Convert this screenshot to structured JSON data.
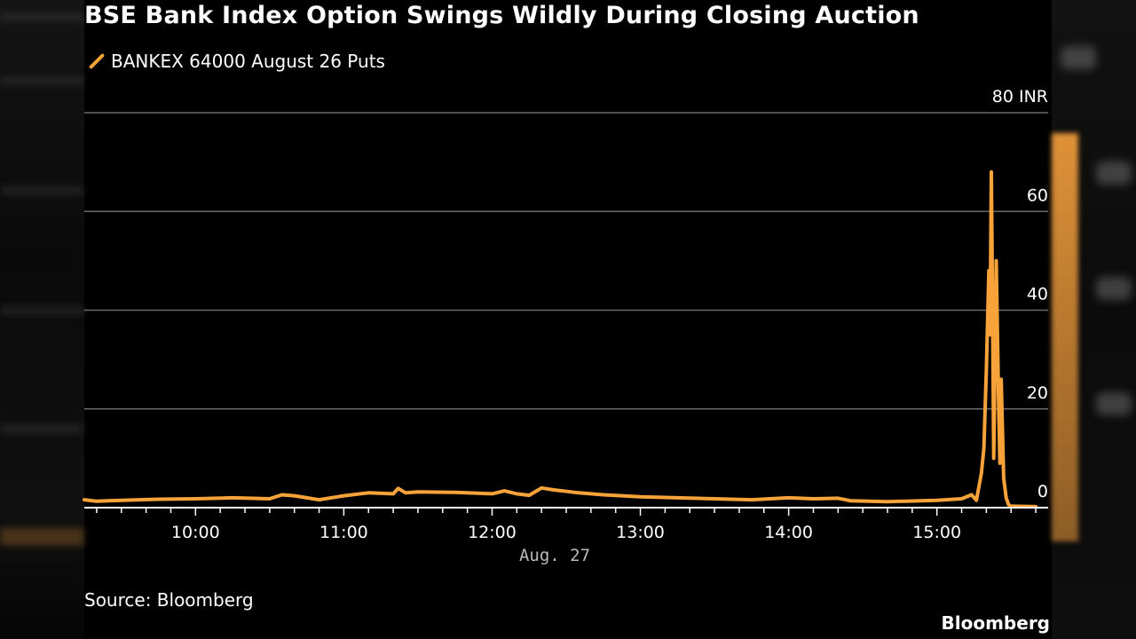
{
  "title": "BSE Bank Index Option Swings Wildly During Closing Auction",
  "legend": {
    "label": "BANKEX 64000 August 26 Puts"
  },
  "source": "Source: Bloomberg",
  "brand": "Bloomberg",
  "colors": {
    "series": "#f7a33a",
    "grid": "#6a6a6a",
    "background": "#000000",
    "text": "#ffffff",
    "date_text": "#bbbbbb"
  },
  "chart_data": {
    "type": "line",
    "title": "BSE Bank Index Option Swings Wildly During Closing Auction",
    "ylabel": "",
    "xlabel": "",
    "y_unit": "INR",
    "ylim": [
      0,
      80
    ],
    "y_ticks": [
      0,
      20,
      40,
      60,
      80
    ],
    "y_tick_labels": [
      "0",
      "20",
      "40",
      "60",
      "80 INR"
    ],
    "y_axis_position": "right",
    "xlim": [
      "09:15",
      "15:45"
    ],
    "x_ticks": [
      "10:00",
      "11:00",
      "12:00",
      "13:00",
      "14:00",
      "15:00"
    ],
    "x_date_label": "Aug. 27",
    "grid": true,
    "legend_position": "top-left",
    "series": [
      {
        "name": "BANKEX 64000 August 26 Puts",
        "color": "#f7a33a",
        "points": [
          [
            "09:15",
            1.6
          ],
          [
            "09:20",
            1.3
          ],
          [
            "09:30",
            1.5
          ],
          [
            "09:45",
            1.7
          ],
          [
            "10:00",
            1.8
          ],
          [
            "10:15",
            2.0
          ],
          [
            "10:30",
            1.8
          ],
          [
            "10:35",
            2.6
          ],
          [
            "10:40",
            2.4
          ],
          [
            "10:50",
            1.6
          ],
          [
            "11:00",
            2.4
          ],
          [
            "11:10",
            3.0
          ],
          [
            "11:20",
            2.8
          ],
          [
            "11:22",
            3.9
          ],
          [
            "11:25",
            3.0
          ],
          [
            "11:30",
            3.2
          ],
          [
            "11:45",
            3.1
          ],
          [
            "12:00",
            2.8
          ],
          [
            "12:05",
            3.4
          ],
          [
            "12:10",
            2.8
          ],
          [
            "12:15",
            2.5
          ],
          [
            "12:20",
            4.0
          ],
          [
            "12:25",
            3.6
          ],
          [
            "12:35",
            3.0
          ],
          [
            "12:45",
            2.6
          ],
          [
            "13:00",
            2.2
          ],
          [
            "13:15",
            2.0
          ],
          [
            "13:30",
            1.8
          ],
          [
            "13:45",
            1.6
          ],
          [
            "14:00",
            2.0
          ],
          [
            "14:10",
            1.8
          ],
          [
            "14:20",
            1.9
          ],
          [
            "14:25",
            1.4
          ],
          [
            "14:40",
            1.2
          ],
          [
            "15:00",
            1.5
          ],
          [
            "15:10",
            1.8
          ],
          [
            "15:14",
            2.6
          ],
          [
            "15:16",
            1.5
          ],
          [
            "15:18",
            7.0
          ],
          [
            "15:19",
            12.0
          ],
          [
            "15:20",
            28.0
          ],
          [
            "15:21",
            48.0
          ],
          [
            "15:21.5",
            35.0
          ],
          [
            "15:22",
            68.0
          ],
          [
            "15:22.5",
            42.0
          ],
          [
            "15:23",
            10.0
          ],
          [
            "15:24",
            50.0
          ],
          [
            "15:25",
            20.0
          ],
          [
            "15:25.5",
            9.0
          ],
          [
            "15:26",
            26.0
          ],
          [
            "15:27",
            6.0
          ],
          [
            "15:28",
            2.0
          ],
          [
            "15:29",
            0.6
          ],
          [
            "15:30",
            0.3
          ],
          [
            "15:40",
            0.2
          ]
        ]
      }
    ]
  }
}
